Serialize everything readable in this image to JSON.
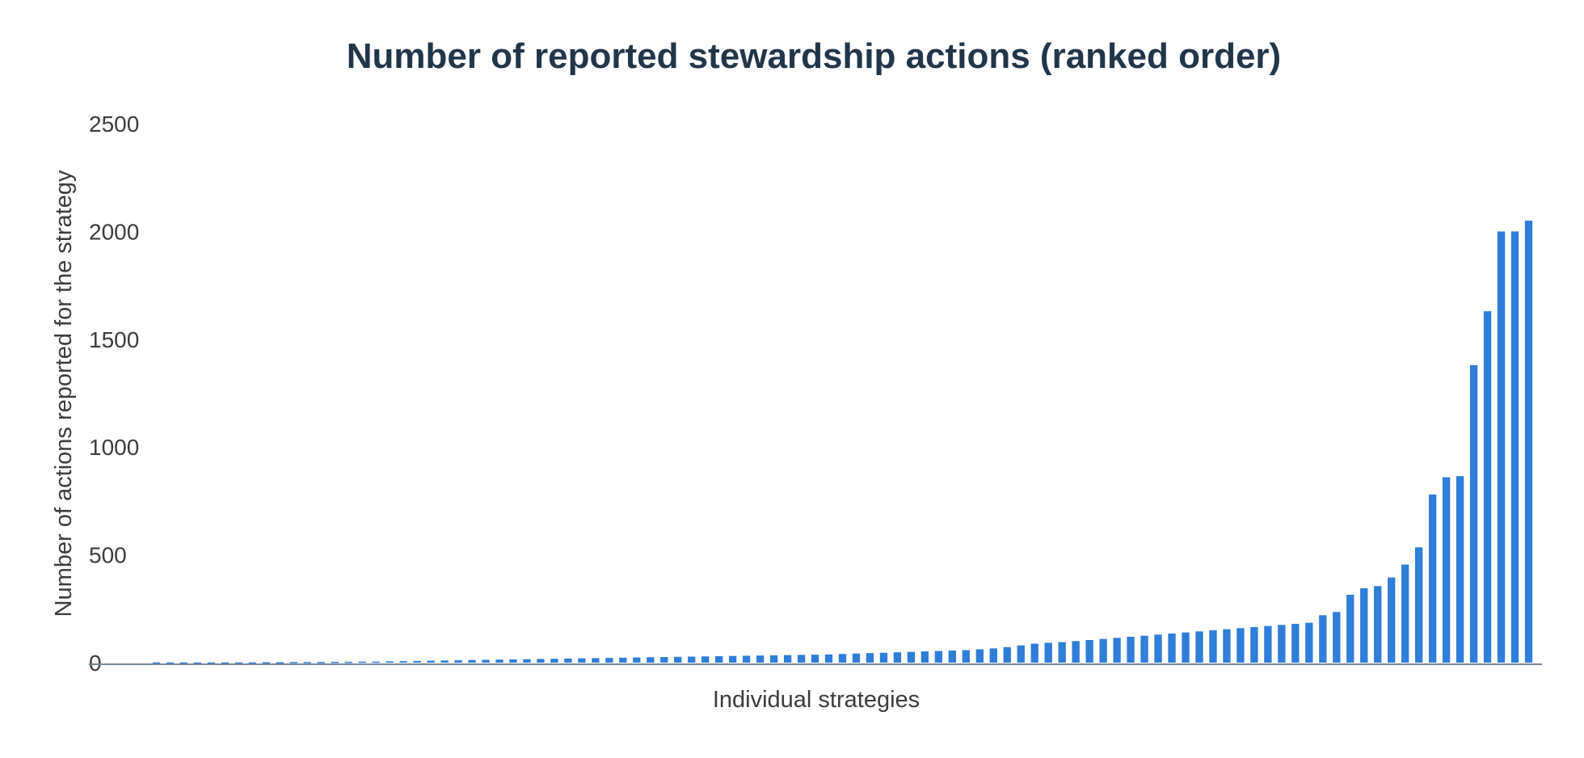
{
  "chart_data": {
    "type": "bar",
    "title": "Number of reported stewardship actions (ranked order)",
    "xlabel": "Individual strategies",
    "ylabel": "Number of actions reported for the strategy",
    "ylim": [
      0,
      2500
    ],
    "yticks": [
      "0",
      "500",
      "1000",
      "1500",
      "2000",
      "2500"
    ],
    "grid": false,
    "bar_color": "#2f7ed8",
    "values": [
      1,
      1,
      1,
      1,
      1,
      1,
      1,
      1,
      2,
      2,
      3,
      3,
      3,
      4,
      4,
      5,
      5,
      6,
      7,
      8,
      9,
      10,
      11,
      12,
      13,
      14,
      15,
      16,
      17,
      18,
      19,
      20,
      21,
      22,
      23,
      24,
      25,
      26,
      27,
      28,
      29,
      30,
      31,
      32,
      33,
      34,
      35,
      36,
      37,
      38,
      40,
      42,
      44,
      46,
      48,
      50,
      52,
      54,
      56,
      58,
      62,
      66,
      72,
      80,
      88,
      92,
      95,
      100,
      105,
      110,
      115,
      120,
      125,
      130,
      135,
      140,
      145,
      150,
      155,
      160,
      165,
      170,
      175,
      180,
      185,
      220,
      235,
      315,
      345,
      355,
      395,
      455,
      535,
      780,
      860,
      865,
      1380,
      1630,
      2000,
      2000,
      2050
    ]
  }
}
